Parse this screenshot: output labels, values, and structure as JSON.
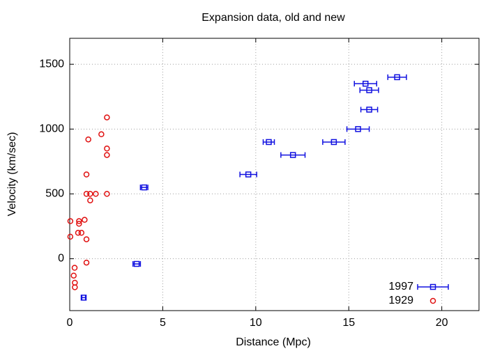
{
  "chart_data": {
    "type": "scatter",
    "title": "Expansion data, old and new",
    "x_label": "Distance (Mpc)",
    "y_label": "Velocity (km/sec)",
    "xlim": [
      0,
      22
    ],
    "ylim": [
      -400,
      1700
    ],
    "xticks": [
      0,
      5,
      10,
      15,
      20
    ],
    "yticks": [
      0,
      500,
      1000,
      1500
    ],
    "grid": true,
    "legend": "bottom-right",
    "series": [
      {
        "name": "1997",
        "color": "#1010e0",
        "marker": "square",
        "x": [
          0.75,
          3.6,
          4.0,
          9.6,
          10.7,
          12.0,
          14.2,
          15.5,
          16.1,
          15.9,
          16.1,
          17.6
        ],
        "xerr": [
          0.1,
          0.2,
          0.2,
          0.45,
          0.3,
          0.65,
          0.6,
          0.6,
          0.45,
          0.6,
          0.5,
          0.5
        ],
        "values": [
          -300,
          -40,
          550,
          650,
          900,
          800,
          900,
          1000,
          1150,
          1350,
          1300,
          1400
        ]
      },
      {
        "name": "1929",
        "color": "#e01010",
        "marker": "circle",
        "x": [
          0.032,
          0.034,
          0.214,
          0.263,
          0.275,
          0.275,
          0.45,
          0.5,
          0.5,
          0.63,
          0.8,
          0.9,
          0.9,
          0.9,
          0.9,
          1.0,
          1.1,
          1.1,
          1.4,
          1.7,
          2.0,
          2.0,
          2.0,
          2.0
        ],
        "values": [
          170,
          290,
          -130,
          -70,
          -185,
          -220,
          200,
          290,
          270,
          200,
          300,
          -30,
          650,
          150,
          500,
          920,
          450,
          500,
          500,
          960,
          500,
          850,
          800,
          1090
        ]
      }
    ]
  }
}
